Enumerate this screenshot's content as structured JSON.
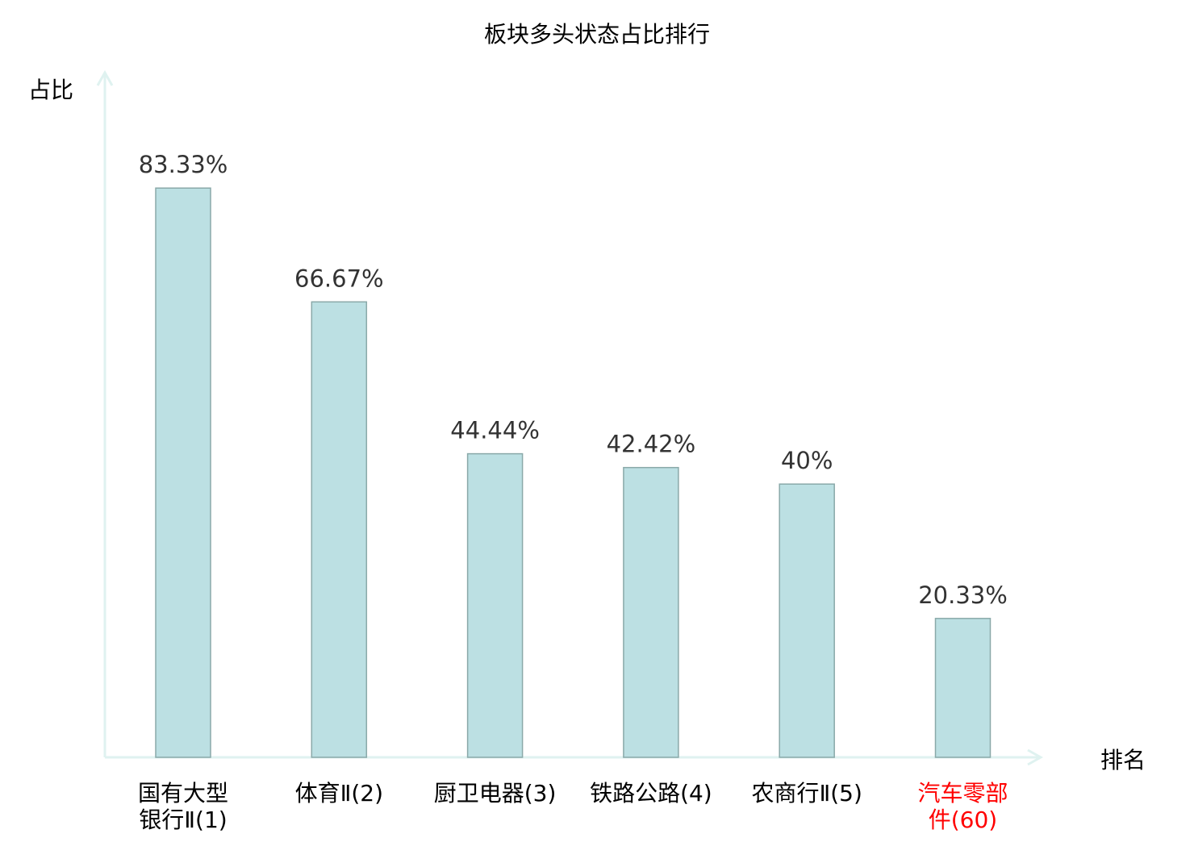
{
  "chart_data": {
    "type": "bar",
    "title": "板块多头状态占比排行",
    "xlabel": "排名",
    "ylabel": "占比",
    "ylim": [
      0,
      100
    ],
    "grid": false,
    "categories": [
      [
        "国有大型",
        "银行Ⅱ(1)"
      ],
      [
        "体育Ⅱ(2)"
      ],
      [
        "厨卫电器(3)"
      ],
      [
        "铁路公路(4)"
      ],
      [
        "农商行Ⅱ(5)"
      ],
      [
        "汽车零部",
        "件(60)"
      ]
    ],
    "values": [
      83.33,
      66.67,
      44.44,
      42.42,
      40,
      20.33
    ],
    "data_labels": [
      "83.33%",
      "66.67%",
      "44.44%",
      "42.42%",
      "40%",
      "20.33%"
    ],
    "highlight_index": 5,
    "colors": {
      "bar_fill": "#bce0e3",
      "bar_stroke": "#8aa9a9",
      "axis": "#dff2f0",
      "label": "#333333",
      "category": "#000000",
      "highlight": "#ff0000"
    }
  }
}
